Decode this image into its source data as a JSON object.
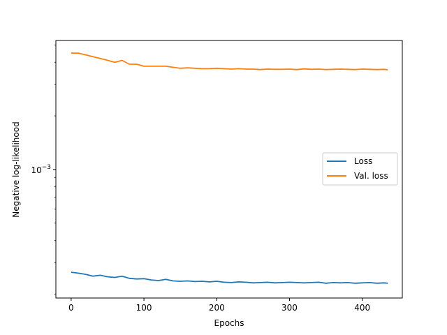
{
  "chart_data": {
    "type": "line",
    "title": "",
    "xlabel": "Epochs",
    "ylabel": "Negative log-likelihood",
    "yscale": "log",
    "xlim": [
      -21,
      455
    ],
    "ylim": [
      0.00019,
      0.0053
    ],
    "xticks": [
      0,
      100,
      200,
      300,
      400
    ],
    "xtick_labels": [
      "0",
      "100",
      "200",
      "300",
      "400"
    ],
    "ytick_major": {
      "value": 0.001,
      "base": "10",
      "exponent": "−3"
    },
    "grid": false,
    "legend": {
      "position": "center-right"
    },
    "series": [
      {
        "name": "Loss",
        "color": "#1f77b4",
        "x": [
          0,
          10,
          20,
          30,
          40,
          50,
          60,
          70,
          80,
          90,
          100,
          110,
          120,
          130,
          140,
          150,
          160,
          170,
          180,
          190,
          200,
          210,
          220,
          230,
          240,
          250,
          260,
          270,
          280,
          290,
          300,
          310,
          320,
          330,
          340,
          350,
          360,
          370,
          380,
          390,
          400,
          410,
          420,
          430,
          435
        ],
        "y": [
          0.000265,
          0.000262,
          0.000258,
          0.000252,
          0.000255,
          0.00025,
          0.000248,
          0.000252,
          0.000245,
          0.000243,
          0.000244,
          0.00024,
          0.000238,
          0.000242,
          0.000237,
          0.000236,
          0.000237,
          0.000235,
          0.000236,
          0.000234,
          0.000236,
          0.000233,
          0.000232,
          0.000234,
          0.000233,
          0.000231,
          0.000232,
          0.000233,
          0.000231,
          0.000232,
          0.000233,
          0.000232,
          0.000231,
          0.000232,
          0.000233,
          0.00023,
          0.000232,
          0.000231,
          0.000232,
          0.00023,
          0.000231,
          0.000232,
          0.00023,
          0.000231,
          0.00023
        ]
      },
      {
        "name": "Val. loss",
        "color": "#ff7f0e",
        "x": [
          0,
          10,
          20,
          30,
          40,
          50,
          60,
          70,
          80,
          90,
          100,
          110,
          120,
          130,
          140,
          150,
          160,
          170,
          180,
          190,
          200,
          210,
          220,
          230,
          240,
          250,
          260,
          270,
          280,
          290,
          300,
          310,
          320,
          330,
          340,
          350,
          360,
          370,
          380,
          390,
          400,
          410,
          420,
          430,
          435
        ],
        "y": [
          0.0045,
          0.0045,
          0.0044,
          0.0043,
          0.0042,
          0.0041,
          0.004,
          0.0041,
          0.0039,
          0.0039,
          0.0038,
          0.0038,
          0.0038,
          0.0038,
          0.00375,
          0.0037,
          0.00372,
          0.0037,
          0.00368,
          0.00368,
          0.0037,
          0.00368,
          0.00366,
          0.00368,
          0.00366,
          0.00366,
          0.00364,
          0.00366,
          0.00365,
          0.00365,
          0.00366,
          0.00364,
          0.00367,
          0.00365,
          0.00366,
          0.00364,
          0.00365,
          0.00366,
          0.00365,
          0.00364,
          0.00366,
          0.00365,
          0.00364,
          0.00365,
          0.00363
        ]
      }
    ]
  }
}
